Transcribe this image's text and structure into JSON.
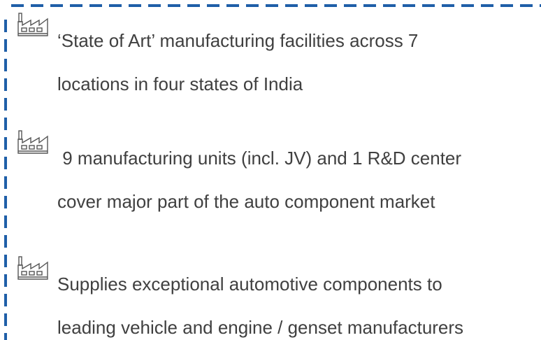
{
  "items": [
    {
      "lines": [
        "‘State of Art’ manufacturing facilities across 7",
        "locations in four states of India"
      ]
    },
    {
      "lines": [
        " 9 manufacturing units (incl. JV) and 1 R&D center",
        "cover major part of the auto component market"
      ]
    },
    {
      "lines": [
        "Supplies exceptional automotive components to",
        "leading vehicle and engine / genset manufacturers"
      ]
    }
  ]
}
